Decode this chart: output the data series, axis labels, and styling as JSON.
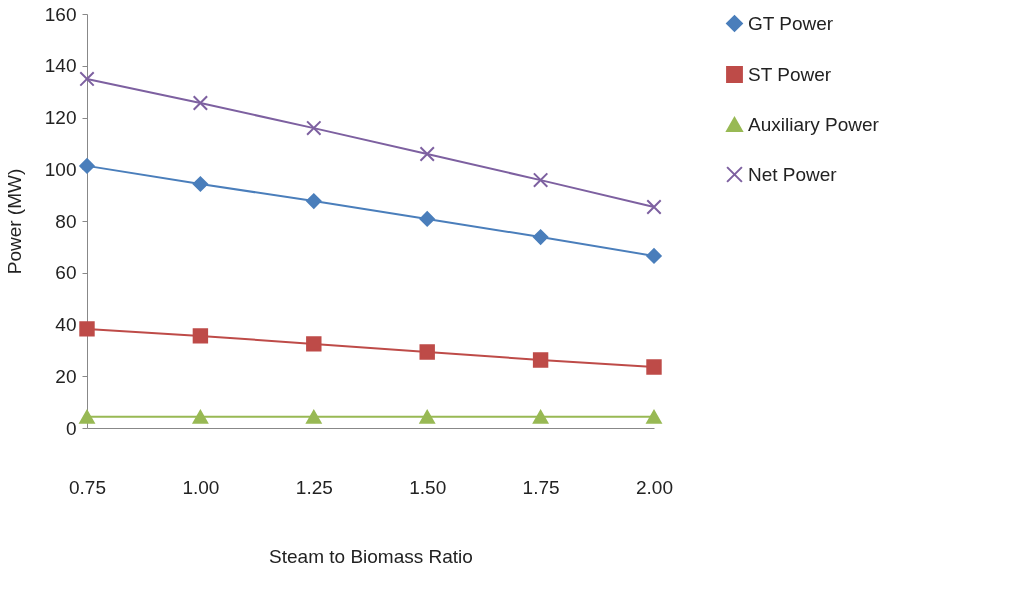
{
  "chart_data": {
    "type": "line",
    "xlabel": "Steam to Biomass Ratio",
    "ylabel": "Power (MW)",
    "categories": [
      "0.75",
      "1.00",
      "1.25",
      "1.50",
      "1.75",
      "2.00"
    ],
    "series": [
      {
        "name": "GT Power",
        "color": "#4a7ebb",
        "marker": "diamond",
        "values": [
          101.3,
          94.3,
          87.7,
          80.8,
          73.8,
          66.5
        ]
      },
      {
        "name": "ST Power",
        "color": "#be4b48",
        "marker": "square",
        "values": [
          38.3,
          35.6,
          32.5,
          29.4,
          26.3,
          23.6
        ]
      },
      {
        "name": "Auxiliary Power",
        "color": "#98b954",
        "marker": "triangle",
        "values": [
          4.3,
          4.3,
          4.3,
          4.3,
          4.3,
          4.3
        ]
      },
      {
        "name": "Net Power",
        "color": "#7d60a0",
        "marker": "cross",
        "values": [
          134.9,
          125.6,
          115.9,
          105.9,
          95.8,
          85.4
        ]
      }
    ],
    "ylim": [
      0,
      160
    ],
    "yticks": [
      0,
      20,
      40,
      60,
      80,
      100,
      120,
      140,
      160
    ],
    "grid": false,
    "legend": "right",
    "line_style": "solid"
  }
}
